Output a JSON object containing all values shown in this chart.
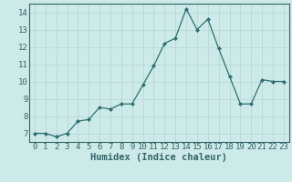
{
  "x": [
    0,
    1,
    2,
    3,
    4,
    5,
    6,
    7,
    8,
    9,
    10,
    11,
    12,
    13,
    14,
    15,
    16,
    17,
    18,
    19,
    20,
    21,
    22,
    23
  ],
  "y": [
    7.0,
    7.0,
    6.8,
    7.0,
    7.7,
    7.8,
    8.5,
    8.4,
    8.7,
    8.7,
    9.8,
    10.9,
    12.2,
    12.5,
    14.2,
    13.0,
    13.6,
    11.9,
    10.3,
    8.7,
    8.7,
    10.1,
    10.0,
    10.0
  ],
  "line_color": "#2d7070",
  "marker": "D",
  "marker_size": 2.2,
  "bg_color": "#cceae8",
  "grid_color": "#b8d8d5",
  "axis_color": "#336666",
  "xlabel": "Humidex (Indice chaleur)",
  "xlabel_fontsize": 7.5,
  "tick_fontsize": 6.5,
  "xlim": [
    -0.5,
    23.5
  ],
  "ylim": [
    6.5,
    14.5
  ],
  "yticks": [
    7,
    8,
    9,
    10,
    11,
    12,
    13,
    14
  ],
  "xticks": [
    0,
    1,
    2,
    3,
    4,
    5,
    6,
    7,
    8,
    9,
    10,
    11,
    12,
    13,
    14,
    15,
    16,
    17,
    18,
    19,
    20,
    21,
    22,
    23
  ]
}
